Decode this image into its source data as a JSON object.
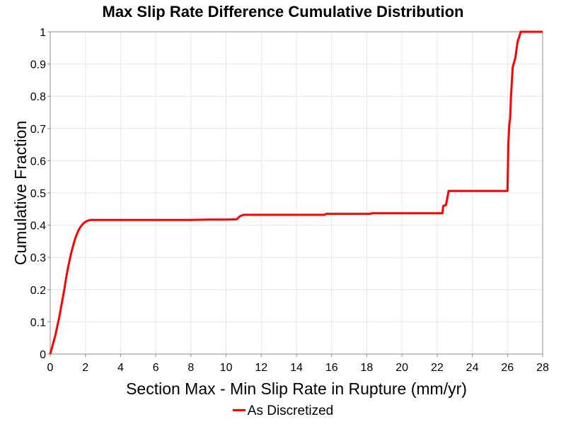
{
  "chart_data": {
    "type": "line",
    "title": "Max Slip Rate Difference Cumulative Distribution",
    "xlabel": "Section Max - Min Slip Rate in Rupture (mm/yr)",
    "ylabel": "Cumulative Fraction",
    "xlim": [
      0,
      28
    ],
    "ylim": [
      0,
      1
    ],
    "x_ticks": [
      "0",
      "2",
      "4",
      "6",
      "8",
      "10",
      "12",
      "14",
      "16",
      "18",
      "20",
      "22",
      "24",
      "26",
      "28"
    ],
    "y_ticks": [
      "0",
      "0.1",
      "0.2",
      "0.3",
      "0.4",
      "0.5",
      "0.6",
      "0.7",
      "0.8",
      "0.9",
      "1"
    ],
    "grid": true,
    "legend_position": "bottom-center",
    "series": [
      {
        "name": "As Discretized",
        "color": "#ff0000",
        "x": [
          0,
          0.05,
          0.1,
          0.2,
          0.3,
          0.4,
          0.5,
          0.6,
          0.7,
          0.8,
          0.9,
          1.0,
          1.1,
          1.2,
          1.3,
          1.4,
          1.5,
          1.6,
          1.7,
          1.8,
          1.9,
          2.0,
          2.1,
          2.2,
          2.3,
          2.5,
          3.0,
          4.0,
          6.0,
          8.0,
          9.0,
          10.0,
          10.6,
          10.8,
          11.0,
          12.0,
          14.0,
          15.6,
          15.7,
          18.0,
          18.2,
          18.3,
          20.0,
          22.0,
          22.3,
          22.35,
          22.5,
          22.6,
          22.65,
          24.0,
          26.0,
          26.05,
          26.1,
          26.15,
          26.2,
          26.3,
          26.35,
          26.45,
          26.55,
          26.6,
          26.65,
          26.7,
          26.75,
          28.0
        ],
        "y": [
          0,
          0.01,
          0.02,
          0.04,
          0.06,
          0.085,
          0.11,
          0.14,
          0.17,
          0.2,
          0.235,
          0.265,
          0.29,
          0.315,
          0.335,
          0.355,
          0.37,
          0.383,
          0.393,
          0.4,
          0.406,
          0.41,
          0.413,
          0.415,
          0.416,
          0.416,
          0.416,
          0.416,
          0.416,
          0.416,
          0.417,
          0.417,
          0.418,
          0.428,
          0.432,
          0.432,
          0.432,
          0.432,
          0.435,
          0.435,
          0.435,
          0.437,
          0.437,
          0.437,
          0.437,
          0.46,
          0.462,
          0.49,
          0.506,
          0.506,
          0.506,
          0.65,
          0.71,
          0.73,
          0.8,
          0.89,
          0.9,
          0.92,
          0.96,
          0.975,
          0.98,
          0.99,
          1,
          1
        ]
      }
    ]
  }
}
